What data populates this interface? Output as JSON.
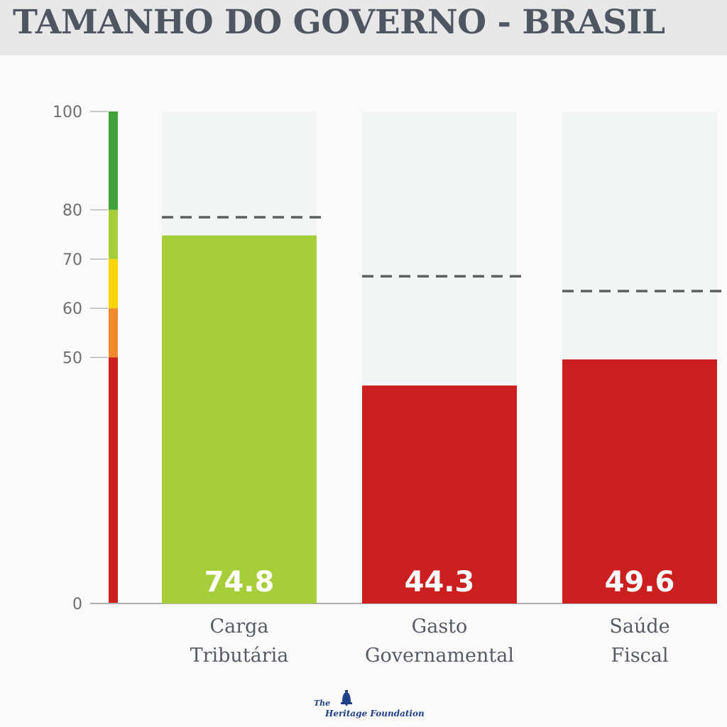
{
  "header": {
    "title": "TAMANHO DO GOVERNO - BRASIL"
  },
  "colors": {
    "green": "#a6ce39",
    "red": "#cc1f1f",
    "track": "#f3f4f4",
    "dark_green": "#3fa33a",
    "orange": "#f08a2c",
    "yellow": "#ffd400"
  },
  "chart_data": {
    "type": "bar",
    "categories": [
      "Carga Tributária",
      "Gasto Governamental",
      "Saúde Fiscal"
    ],
    "category_lines": [
      [
        "Carga",
        "Tributária"
      ],
      [
        "Gasto",
        "Governamental"
      ],
      [
        "Saúde",
        "Fiscal"
      ]
    ],
    "values": [
      74.8,
      44.3,
      49.6
    ],
    "value_labels": [
      "74.8",
      "44.3",
      "49.6"
    ],
    "reference_values": [
      78.5,
      66.5,
      63.5
    ],
    "bar_colors": [
      "#a6ce39",
      "#cc1f1f",
      "#cc1f1f"
    ],
    "ylim": [
      0,
      100
    ],
    "y_ticks": [
      0,
      50,
      60,
      70,
      80,
      100
    ],
    "y_tick_labels": [
      "0",
      "50",
      "60",
      "70",
      "80",
      "100"
    ],
    "scale_bands": [
      {
        "from": 0,
        "to": 50,
        "color": "#cc1f1f"
      },
      {
        "from": 50,
        "to": 60,
        "color": "#f08a2c"
      },
      {
        "from": 60,
        "to": 70,
        "color": "#ffd400"
      },
      {
        "from": 70,
        "to": 80,
        "color": "#a6ce39"
      },
      {
        "from": 80,
        "to": 100,
        "color": "#3fa33a"
      }
    ],
    "title": "TAMANHO DO GOVERNO - BRASIL",
    "xlabel": "",
    "ylabel": ""
  },
  "footer": {
    "logo_the": "The",
    "logo_name": "Heritage Foundation",
    "logo_icon": "liberty-bell-icon"
  }
}
